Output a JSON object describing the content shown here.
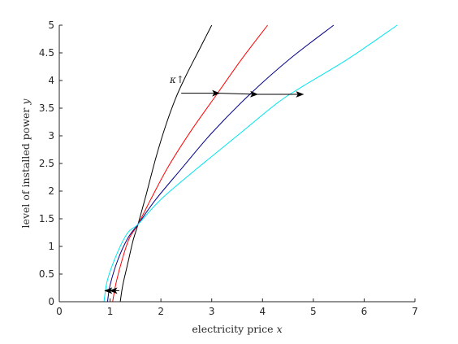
{
  "chart_data": {
    "type": "line",
    "xlabel_text": "electricity price ",
    "xlabel_var": "x",
    "ylabel_text": "level of installed power ",
    "ylabel_var": "y",
    "xlim": [
      0,
      7
    ],
    "ylim": [
      0,
      5
    ],
    "xticks": [
      "0",
      "1",
      "2",
      "3",
      "4",
      "5",
      "6",
      "7"
    ],
    "yticks": [
      "0",
      "0.5",
      "1",
      "1.5",
      "2",
      "2.5",
      "3",
      "3.5",
      "4",
      "4.5",
      "5"
    ],
    "grid": false,
    "annotation": "κ↑",
    "series": [
      {
        "color": "#000000",
        "points": [
          [
            1.2,
            0
          ],
          [
            1.25,
            0.3
          ],
          [
            1.35,
            0.7
          ],
          [
            1.45,
            1.1
          ],
          [
            1.55,
            1.4
          ],
          [
            1.7,
            1.9
          ],
          [
            1.9,
            2.6
          ],
          [
            2.1,
            3.2
          ],
          [
            2.3,
            3.7
          ],
          [
            2.5,
            4.1
          ],
          [
            2.75,
            4.55
          ],
          [
            3.0,
            5.0
          ]
        ]
      },
      {
        "color": "#ff0000",
        "points": [
          [
            1.05,
            0
          ],
          [
            1.12,
            0.35
          ],
          [
            1.25,
            0.8
          ],
          [
            1.38,
            1.15
          ],
          [
            1.55,
            1.4
          ],
          [
            1.8,
            1.85
          ],
          [
            2.15,
            2.45
          ],
          [
            2.6,
            3.1
          ],
          [
            3.1,
            3.75
          ],
          [
            3.6,
            4.4
          ],
          [
            4.1,
            5.0
          ]
        ]
      },
      {
        "color": "#00008b",
        "points": [
          [
            0.95,
            0
          ],
          [
            1.0,
            0.3
          ],
          [
            1.15,
            0.75
          ],
          [
            1.35,
            1.15
          ],
          [
            1.55,
            1.4
          ],
          [
            1.9,
            1.85
          ],
          [
            2.4,
            2.4
          ],
          [
            3.0,
            3.05
          ],
          [
            3.75,
            3.75
          ],
          [
            4.55,
            4.4
          ],
          [
            5.4,
            5.0
          ]
        ]
      },
      {
        "color": "#00e5ee",
        "points": [
          [
            0.88,
            0
          ],
          [
            0.95,
            0.4
          ],
          [
            1.15,
            0.9
          ],
          [
            1.35,
            1.25
          ],
          [
            1.55,
            1.4
          ],
          [
            2.0,
            1.85
          ],
          [
            2.7,
            2.4
          ],
          [
            3.5,
            3.0
          ],
          [
            4.3,
            3.6
          ],
          [
            4.8,
            3.9
          ],
          [
            5.7,
            4.4
          ],
          [
            6.65,
            5.0
          ]
        ]
      }
    ],
    "arrows": [
      {
        "from": [
          2.4,
          3.77
        ],
        "to": [
          3.15,
          3.77
        ]
      },
      {
        "from": [
          3.15,
          3.77
        ],
        "to": [
          3.9,
          3.75
        ]
      },
      {
        "from": [
          3.9,
          3.75
        ],
        "to": [
          4.8,
          3.75
        ]
      },
      {
        "from": [
          1.18,
          0.2
        ],
        "to": [
          1.0,
          0.2
        ]
      },
      {
        "from": [
          1.0,
          0.2
        ],
        "to": [
          0.9,
          0.2
        ]
      }
    ]
  }
}
